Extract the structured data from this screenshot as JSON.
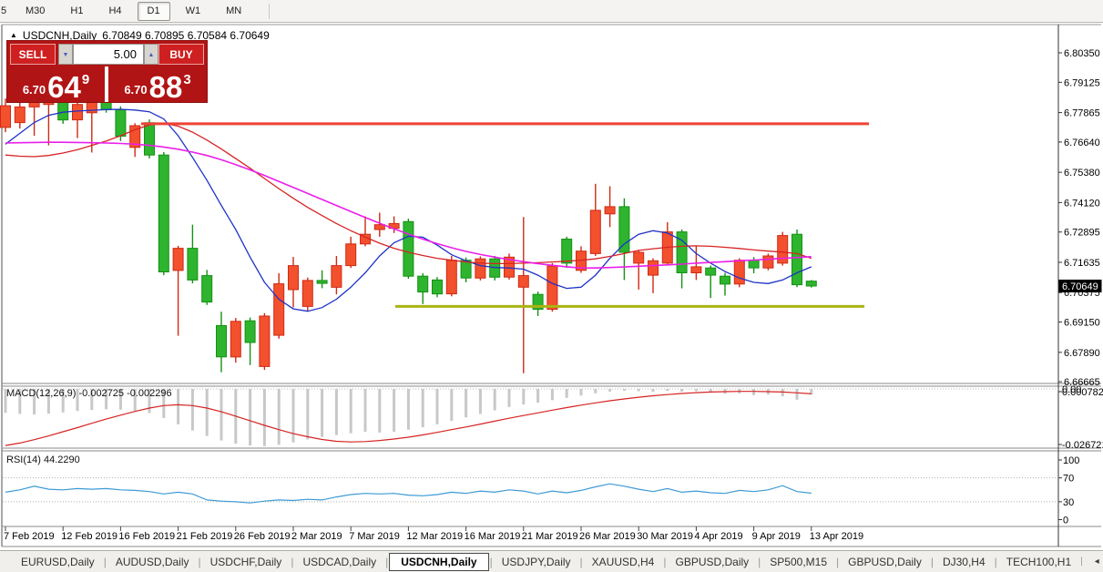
{
  "toolbar": {
    "timeframes": [
      "5",
      "M30",
      "H1",
      "H4",
      "D1",
      "W1",
      "MN"
    ],
    "active_timeframe": "D1"
  },
  "chart": {
    "title_symbol": "USDCNH,Daily",
    "title_ohlc": "6.70849 6.70895 6.70584 6.70649",
    "collapse_icon": "▲"
  },
  "trade_panel": {
    "sell_label": "SELL",
    "buy_label": "BUY",
    "volume": "5.00",
    "spin_down_icon": "▼",
    "spin_up_icon": "▲",
    "sell_price": {
      "prefix": "6.70",
      "big": "64",
      "sup": "9"
    },
    "buy_price": {
      "prefix": "6.70",
      "big": "88",
      "sup": "3"
    }
  },
  "chart_data": {
    "type": "candlestick",
    "symbol": "USDCNH",
    "timeframe": "Daily",
    "current_bar": {
      "open": 6.70849,
      "high": 6.70895,
      "low": 6.70584,
      "close": 6.70649
    },
    "price_axis": {
      "labels": [
        "6.80350",
        "6.79125",
        "6.77865",
        "6.76640",
        "6.75380",
        "6.74120",
        "6.72895",
        "6.71635",
        "6.70375",
        "6.69150",
        "6.67890",
        "6.66665"
      ],
      "current_price": "6.70649"
    },
    "x_axis": {
      "dates": [
        "7 Feb 2019",
        "12 Feb 2019",
        "16 Feb 2019",
        "21 Feb 2019",
        "26 Feb 2019",
        "2 Mar 2019",
        "7 Mar 2019",
        "12 Mar 2019",
        "16 Mar 2019",
        "21 Mar 2019",
        "26 Mar 2019",
        "30 Mar 2019",
        "4 Apr 2019",
        "9 Apr 2019",
        "13 Apr 2019"
      ],
      "bars_per_tick": 4
    },
    "candles": [
      [
        6.7725,
        6.7845,
        6.7705,
        6.7815
      ],
      [
        6.7745,
        6.783,
        6.772,
        6.781
      ],
      [
        6.781,
        6.785,
        6.769,
        6.7838
      ],
      [
        6.782,
        6.7856,
        6.765,
        6.7842
      ],
      [
        6.784,
        6.7848,
        6.774,
        6.7756
      ],
      [
        6.7756,
        6.783,
        6.768,
        6.782
      ],
      [
        6.7786,
        6.7846,
        6.762,
        6.784
      ],
      [
        6.7842,
        6.786,
        6.7786,
        6.7798
      ],
      [
        6.7798,
        6.7812,
        6.7668,
        6.7688
      ],
      [
        6.7642,
        6.7742,
        6.7602,
        6.7732
      ],
      [
        6.7744,
        6.7758,
        6.7596,
        6.761
      ],
      [
        6.761,
        6.7622,
        6.711,
        6.7124
      ],
      [
        6.713,
        6.7232,
        6.6858,
        6.7222
      ],
      [
        6.7222,
        6.732,
        6.7076,
        6.709
      ],
      [
        6.7108,
        6.7132,
        6.6986,
        6.6998
      ],
      [
        6.69,
        6.6958,
        6.6706,
        6.677
      ],
      [
        6.677,
        6.6932,
        6.6746,
        6.6918
      ],
      [
        6.692,
        6.6934,
        6.6736,
        6.683
      ],
      [
        6.673,
        6.6952,
        6.6716,
        6.694
      ],
      [
        6.686,
        6.7118,
        6.6846,
        6.7074
      ],
      [
        6.705,
        6.7186,
        6.6976,
        6.715
      ],
      [
        6.698,
        6.71,
        6.696,
        6.7088
      ],
      [
        6.7088,
        6.713,
        6.7056,
        6.7076
      ],
      [
        6.706,
        6.719,
        6.703,
        6.715
      ],
      [
        6.715,
        6.727,
        6.714,
        6.724
      ],
      [
        6.724,
        6.7355,
        6.723,
        6.728
      ],
      [
        6.73,
        6.737,
        6.727,
        6.732
      ],
      [
        6.7305,
        6.7355,
        6.7285,
        6.7325
      ],
      [
        6.7333,
        6.7345,
        6.7095,
        6.7106
      ],
      [
        6.7106,
        6.7118,
        6.699,
        6.704
      ],
      [
        6.709,
        6.7102,
        6.7018,
        6.7032
      ],
      [
        6.7032,
        6.719,
        6.7022,
        6.7172
      ],
      [
        6.7172,
        6.7184,
        6.708,
        6.7098
      ],
      [
        6.7098,
        6.7188,
        6.7088,
        6.7178
      ],
      [
        6.7178,
        6.719,
        6.7088,
        6.7102
      ],
      [
        6.7102,
        6.72,
        6.7092,
        6.7185
      ],
      [
        6.706,
        6.7352,
        6.6702,
        6.7108
      ],
      [
        6.703,
        6.7042,
        6.694,
        6.6968
      ],
      [
        6.6968,
        6.716,
        6.6958,
        6.7148
      ],
      [
        6.726,
        6.727,
        6.714,
        6.716
      ],
      [
        6.713,
        6.723,
        6.712,
        6.721
      ],
      [
        6.72,
        6.749,
        6.719,
        6.738
      ],
      [
        6.7365,
        6.748,
        6.731,
        6.7395
      ],
      [
        6.7395,
        6.743,
        6.709,
        6.7205
      ],
      [
        6.716,
        6.7215,
        6.705,
        6.7205
      ],
      [
        6.711,
        6.718,
        6.7035,
        6.717
      ],
      [
        6.716,
        6.733,
        6.715,
        6.729
      ],
      [
        6.729,
        6.73,
        6.7055,
        6.712
      ],
      [
        6.712,
        6.723,
        6.709,
        6.7145
      ],
      [
        6.714,
        6.715,
        6.7015,
        6.711
      ],
      [
        6.7106,
        6.712,
        6.7025,
        6.7073
      ],
      [
        6.7073,
        6.718,
        6.706,
        6.7172
      ],
      [
        6.7172,
        6.7185,
        6.7118,
        6.714
      ],
      [
        6.714,
        6.72,
        6.713,
        6.719
      ],
      [
        6.716,
        6.729,
        6.715,
        6.7275
      ],
      [
        6.728,
        6.73,
        6.706,
        6.707
      ],
      [
        6.70849,
        6.70895,
        6.70584,
        6.70649
      ]
    ],
    "moving_averages": {
      "fast_blue": [
        6.7655,
        6.77,
        6.7745,
        6.7775,
        6.7788,
        6.7793,
        6.7796,
        6.7799,
        6.78,
        6.7797,
        6.779,
        6.776,
        6.769,
        6.76,
        6.7505,
        6.74,
        6.73,
        6.7185,
        6.708,
        6.701,
        6.697,
        6.696,
        6.6975,
        6.701,
        6.706,
        6.712,
        6.719,
        6.7245,
        6.7272,
        6.7268,
        6.7235,
        6.7195,
        6.717,
        6.715,
        6.7142,
        6.714,
        6.7135,
        6.711,
        6.7075,
        6.7055,
        6.706,
        6.711,
        6.718,
        6.724,
        6.728,
        6.7295,
        6.7285,
        6.7255,
        6.72,
        6.716,
        6.7125,
        6.7098,
        6.708,
        6.7075,
        6.709,
        6.712,
        6.7145
      ],
      "mid_red": [
        6.761,
        6.7605,
        6.7603,
        6.7608,
        6.7618,
        6.7632,
        6.765,
        6.7668,
        6.769,
        6.7715,
        6.7735,
        6.7742,
        6.773,
        6.7705,
        6.7672,
        6.7635,
        6.7595,
        6.7555,
        6.7512,
        6.747,
        6.743,
        6.7392,
        6.7358,
        6.7325,
        6.7295,
        6.7268,
        6.7243,
        6.7222,
        6.7205,
        6.7192,
        6.718,
        6.7172,
        6.7165,
        6.716,
        6.7158,
        6.7158,
        6.716,
        6.7162,
        6.7165,
        6.7168,
        6.7172,
        6.7178,
        6.7188,
        6.72,
        6.7213,
        6.722,
        6.7226,
        6.723,
        6.7232,
        6.723,
        6.7226,
        6.7221,
        6.7215,
        6.721,
        6.7206,
        6.72,
        6.718
      ],
      "slow_magenta": [
        6.766,
        6.7661,
        6.7662,
        6.7663,
        6.7663,
        6.7662,
        6.7661,
        6.766,
        6.7658,
        6.7655,
        6.765,
        6.7643,
        6.7634,
        6.7622,
        6.7608,
        6.759,
        6.757,
        6.7548,
        6.7525,
        6.75,
        6.7475,
        6.745,
        6.7425,
        6.74,
        6.7375,
        6.735,
        6.7326,
        6.7303,
        6.7281,
        6.726,
        6.7241,
        6.7224,
        6.7209,
        6.7196,
        6.7185,
        6.7175,
        6.7166,
        6.7158,
        6.7151,
        6.7145,
        6.714,
        6.714,
        6.7142,
        6.7144,
        6.7147,
        6.715,
        6.7153,
        6.7156,
        6.716,
        6.7163,
        6.7166,
        6.717,
        6.7173,
        6.7176,
        6.718,
        6.7183,
        6.7187
      ]
    },
    "horizontal_lines": [
      {
        "name": "resistance-line",
        "price": 6.774,
        "color": "#ee4233",
        "from_bar": 9.4,
        "to_bar": 60.0
      },
      {
        "name": "support-line",
        "price": 6.698,
        "color": "#a9b414",
        "from_bar": 27.1,
        "to_bar": 59.7
      }
    ],
    "macd": {
      "label": "MACD(12,26,9)",
      "main_value": "-0.002725",
      "signal_value": "-0.002296",
      "axis_labels": [
        "0.00",
        "0.000782",
        "-0.026721"
      ],
      "histogram": [
        -0.0115,
        -0.012,
        -0.0123,
        -0.0119,
        -0.0113,
        -0.0106,
        -0.0101,
        -0.0098,
        -0.01,
        -0.0106,
        -0.0116,
        -0.014,
        -0.017,
        -0.02,
        -0.0226,
        -0.0248,
        -0.0263,
        -0.0272,
        -0.0275,
        -0.0269,
        -0.0257,
        -0.0243,
        -0.0231,
        -0.0222,
        -0.0213,
        -0.0206,
        -0.021,
        -0.0206,
        -0.0196,
        -0.0184,
        -0.017,
        -0.0154,
        -0.0137,
        -0.012,
        -0.0103,
        -0.0087,
        -0.0075,
        -0.0066,
        -0.0054,
        -0.0043,
        -0.0032,
        -0.0021,
        -0.0013,
        -0.0009,
        -0.0011,
        -0.0013,
        -0.0009,
        -0.0013,
        -0.0011,
        -0.0016,
        -0.0024,
        -0.0022,
        -0.003,
        -0.0027,
        -0.0035,
        -0.0052,
        -0.0027
      ],
      "signal": [
        -0.0272,
        -0.026,
        -0.0244,
        -0.0226,
        -0.0206,
        -0.0186,
        -0.0165,
        -0.0145,
        -0.0126,
        -0.0108,
        -0.0092,
        -0.008,
        -0.0076,
        -0.008,
        -0.0092,
        -0.011,
        -0.0131,
        -0.0153,
        -0.0175,
        -0.0196,
        -0.0215,
        -0.023,
        -0.0243,
        -0.0252,
        -0.0255,
        -0.0253,
        -0.0248,
        -0.0241,
        -0.0232,
        -0.0221,
        -0.0209,
        -0.0196,
        -0.0183,
        -0.0169,
        -0.0155,
        -0.0141,
        -0.0128,
        -0.0115,
        -0.0102,
        -0.009,
        -0.0078,
        -0.0067,
        -0.0057,
        -0.0048,
        -0.004,
        -0.0033,
        -0.0027,
        -0.0022,
        -0.0018,
        -0.0015,
        -0.0013,
        -0.0012,
        -0.0012,
        -0.0013,
        -0.0015,
        -0.0019,
        -0.0023
      ]
    },
    "rsi": {
      "label": "RSI(14)",
      "value": "44.2290",
      "axis_labels": [
        "100",
        "70",
        "30",
        "0"
      ],
      "level_lines": [
        70,
        30
      ],
      "values": [
        46,
        50,
        56,
        51,
        50,
        52,
        51,
        52,
        50,
        49,
        47,
        43,
        46,
        43,
        33,
        31,
        30,
        28,
        31,
        33,
        32,
        34,
        33,
        38,
        42,
        44,
        43,
        44,
        41,
        40,
        42,
        46,
        44,
        48,
        46,
        50,
        48,
        43,
        48,
        45,
        49,
        55,
        60,
        56,
        51,
        47,
        52,
        46,
        48,
        45,
        44,
        49,
        47,
        50,
        57,
        47,
        44.2
      ]
    },
    "colors": {
      "bull_candle": "#f3502e",
      "bull_border": "#cf2a14",
      "bear_candle": "#2eb42e",
      "bear_border": "#149114",
      "ma_fast": "#1f32c8",
      "ma_mid": "#d62424",
      "ma_slow": "#ea1fea",
      "macd_histogram": "#c8c8c8",
      "macd_signal": "#d62424",
      "rsi_line": "#3e9ad6",
      "price_badge_bg": "#000000",
      "price_badge_text": "#ffffff"
    },
    "layout": {
      "grid": false,
      "legend": "none"
    }
  },
  "tabs": {
    "items": [
      "EURUSD,Daily",
      "AUDUSD,Daily",
      "USDCHF,Daily",
      "USDCAD,Daily",
      "USDCNH,Daily",
      "USDJPY,Daily",
      "XAUUSD,H4",
      "GBPUSD,Daily",
      "SP500,M15",
      "GBPUSD,Daily",
      "DJ30,H4",
      "TECH100,H1"
    ],
    "active_index": 4,
    "scroll_left_icon": "◂",
    "scroll_right_icon": "▸"
  }
}
